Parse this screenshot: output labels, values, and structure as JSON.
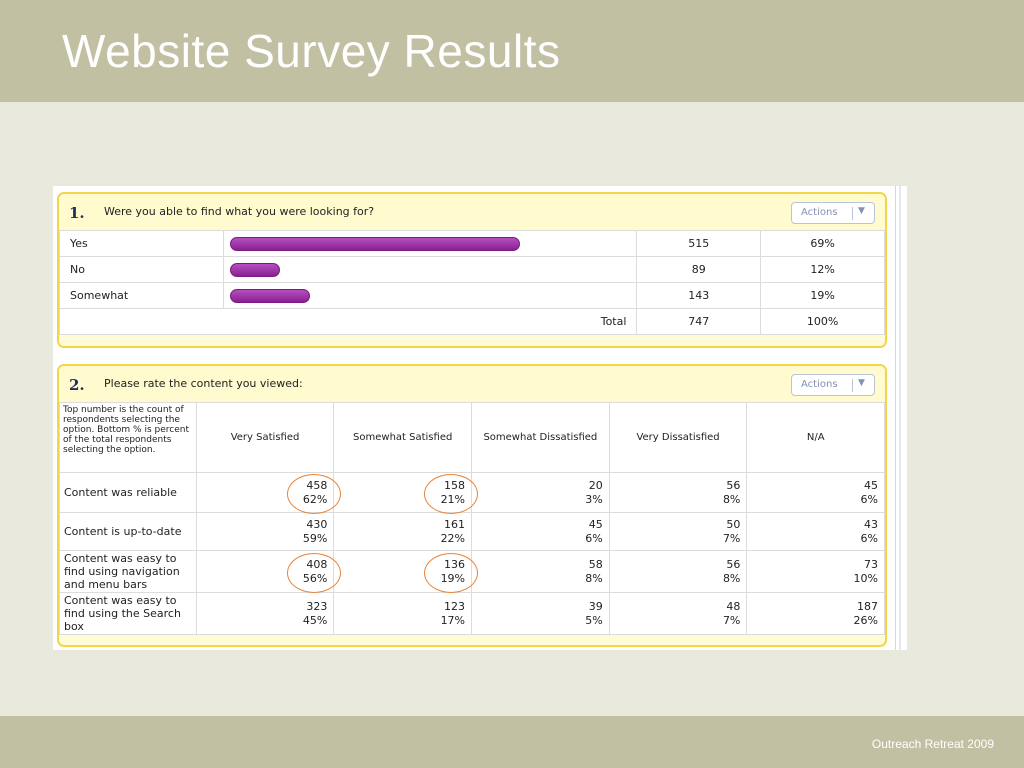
{
  "slide": {
    "title": "Website Survey Results",
    "footer": "Outreach Retreat 2009"
  },
  "q1": {
    "number": "1.",
    "question": "Were you able to find what you were looking for?",
    "actions_label": "Actions",
    "rows": [
      {
        "label": "Yes",
        "count": "515",
        "percent": "69%",
        "fraction": 0.69
      },
      {
        "label": "No",
        "count": "89",
        "percent": "12%",
        "fraction": 0.12
      },
      {
        "label": "Somewhat",
        "count": "143",
        "percent": "19%",
        "fraction": 0.19
      }
    ],
    "total": {
      "label": "Total",
      "count": "747",
      "percent": "100%"
    },
    "bar_color": "#8a208f"
  },
  "q2": {
    "number": "2.",
    "question": "Please rate the content you viewed:",
    "actions_label": "Actions",
    "note": "Top number is the count of respondents selecting the option. Bottom % is percent of the total respondents selecting the option.",
    "columns": [
      "Very Satisfied",
      "Somewhat Satisfied",
      "Somewhat Dissatisfied",
      "Very Dissatisfied",
      "N/A"
    ],
    "rows": [
      {
        "label": "Content was reliable",
        "cells": [
          {
            "count": "458",
            "pct": "62%"
          },
          {
            "count": "158",
            "pct": "21%"
          },
          {
            "count": "20",
            "pct": "3%"
          },
          {
            "count": "56",
            "pct": "8%"
          },
          {
            "count": "45",
            "pct": "6%"
          }
        ]
      },
      {
        "label": "Content is up-to-date",
        "cells": [
          {
            "count": "430",
            "pct": "59%"
          },
          {
            "count": "161",
            "pct": "22%"
          },
          {
            "count": "45",
            "pct": "6%"
          },
          {
            "count": "50",
            "pct": "7%"
          },
          {
            "count": "43",
            "pct": "6%"
          }
        ]
      },
      {
        "label": "Content was easy to find using navigation and menu bars",
        "cells": [
          {
            "count": "408",
            "pct": "56%"
          },
          {
            "count": "136",
            "pct": "19%"
          },
          {
            "count": "58",
            "pct": "8%"
          },
          {
            "count": "56",
            "pct": "8%"
          },
          {
            "count": "73",
            "pct": "10%"
          }
        ]
      },
      {
        "label": "Content was easy to find using the Search box",
        "cells": [
          {
            "count": "323",
            "pct": "45%"
          },
          {
            "count": "123",
            "pct": "17%"
          },
          {
            "count": "39",
            "pct": "5%"
          },
          {
            "count": "48",
            "pct": "7%"
          },
          {
            "count": "187",
            "pct": "26%"
          }
        ]
      }
    ],
    "highlight_color": "#e8843a"
  }
}
